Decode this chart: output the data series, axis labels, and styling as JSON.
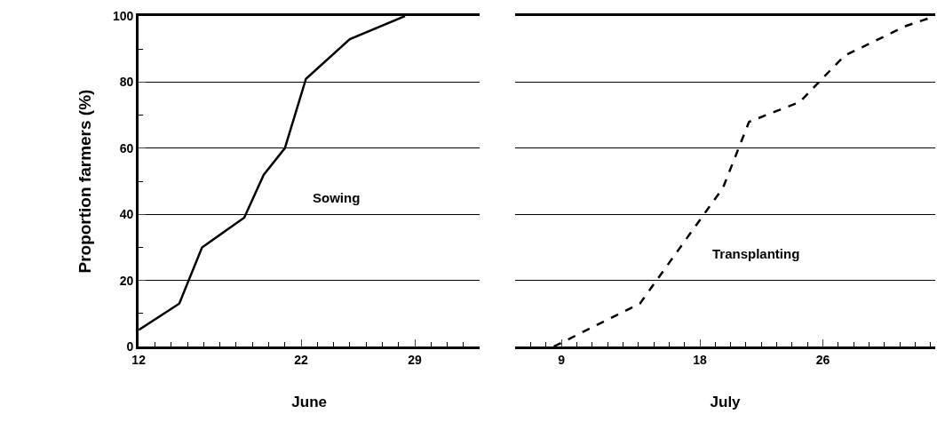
{
  "chart_data": [
    {
      "type": "line",
      "ylabel": "Proportion farmers (%)",
      "xlabel": "June",
      "xlim": [
        12,
        33
      ],
      "xticks": [
        12,
        22,
        29
      ],
      "ylim": [
        0,
        100
      ],
      "yticks": [
        0,
        20,
        40,
        60,
        80,
        100
      ],
      "grid": "y",
      "marker": "none",
      "series": [
        {
          "name": "Sowing",
          "color": "#000000",
          "line_style": "solid",
          "x": [
            12,
            14.5,
            15.9,
            18.5,
            19.7,
            21.0,
            22.3,
            25.0,
            28.4
          ],
          "values": [
            5,
            13,
            30,
            39,
            52,
            60,
            81,
            93,
            100
          ]
        }
      ]
    },
    {
      "type": "line",
      "xlabel": "July",
      "xlim": [
        6,
        33.3
      ],
      "xticks": [
        9,
        18,
        26
      ],
      "ylim": [
        0,
        100
      ],
      "yticks": [
        0,
        20,
        40,
        60,
        80,
        100
      ],
      "grid": "y",
      "marker": "none",
      "tick_labels": "x",
      "series": [
        {
          "name": "Transplanting",
          "color": "#000000",
          "line_style": "dashed",
          "x": [
            8.5,
            14.1,
            19.5,
            21.2,
            24.5,
            27.4,
            31.4,
            33.3
          ],
          "values": [
            0,
            13,
            48,
            68,
            74,
            88,
            97,
            100
          ]
        }
      ]
    }
  ]
}
